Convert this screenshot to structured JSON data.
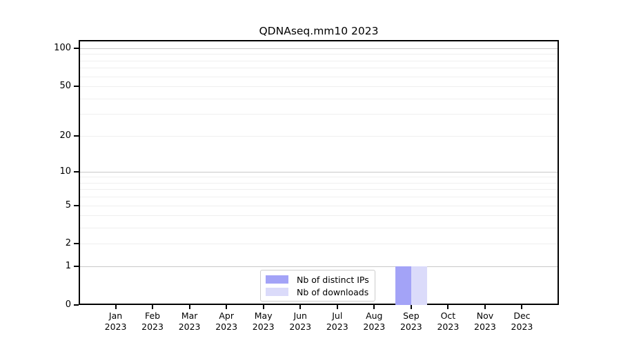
{
  "chart_data": {
    "type": "bar",
    "title": "QDNAseq.mm10 2023",
    "categories": [
      "Jan 2023",
      "Feb 2023",
      "Mar 2023",
      "Apr 2023",
      "May 2023",
      "Jun 2023",
      "Jul 2023",
      "Aug 2023",
      "Sep 2023",
      "Oct 2023",
      "Nov 2023",
      "Dec 2023"
    ],
    "series": [
      {
        "name": "Nb of distinct IPs",
        "color": "#a3a3f7",
        "values": [
          0,
          0,
          0,
          0,
          0,
          0,
          0,
          0,
          1,
          0,
          0,
          0
        ]
      },
      {
        "name": "Nb of downloads",
        "color": "#dbdbfa",
        "values": [
          0,
          0,
          0,
          0,
          0,
          0,
          0,
          0,
          1,
          0,
          0,
          0
        ]
      }
    ],
    "yticks": [
      0,
      1,
      2,
      5,
      10,
      20,
      50,
      100
    ],
    "ytick_labels": [
      "0",
      "1",
      "2",
      "5",
      "10",
      "20",
      "50",
      "100"
    ],
    "ylim": [
      0,
      116
    ],
    "yscale": "log(1+y)",
    "grid": {
      "orientation": "horizontal",
      "major_lines": [
        1,
        10,
        100
      ],
      "minor_lines": [
        2,
        3,
        4,
        5,
        6,
        7,
        8,
        9,
        20,
        30,
        40,
        50,
        60,
        70,
        80,
        90
      ]
    },
    "legend_position": "lower center inside",
    "xlabel": "",
    "ylabel": ""
  },
  "colors": {
    "bar_distinct_ips": "#a3a3f7",
    "bar_downloads": "#dbdbfa",
    "grid_major": "#c8c8c8",
    "grid_minor": "#efefef",
    "axis_frame": "#000000",
    "legend_border": "#cccccc",
    "background": "#ffffff"
  }
}
